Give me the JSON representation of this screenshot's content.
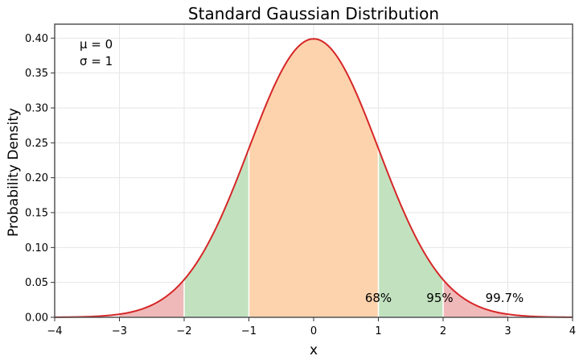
{
  "chart_data": {
    "type": "area",
    "title": "Standard Gaussian Distribution",
    "xlabel": "x",
    "ylabel": "Probability Density",
    "xlim": [
      -4,
      4
    ],
    "ylim": [
      0,
      0.42
    ],
    "grid": true,
    "x_ticks": [
      -4,
      -3,
      -2,
      -1,
      0,
      1,
      2,
      3,
      4
    ],
    "x_tick_labels": [
      "−4",
      "−3",
      "−2",
      "−1",
      "0",
      "1",
      "2",
      "3",
      "4"
    ],
    "y_ticks": [
      0.0,
      0.05,
      0.1,
      0.15,
      0.2,
      0.25,
      0.3,
      0.35,
      0.4
    ],
    "y_tick_labels": [
      "0.00",
      "0.05",
      "0.10",
      "0.15",
      "0.20",
      "0.25",
      "0.30",
      "0.35",
      "0.40"
    ],
    "parameters": {
      "mu_label": "μ = 0",
      "sigma_label": "σ = 1"
    },
    "distribution": {
      "mean": 0,
      "std": 1
    },
    "curve_color": "#d62728",
    "regions": [
      {
        "from": -1,
        "to": 1,
        "color": "#fdd3ad"
      },
      {
        "from": -2,
        "to": -1,
        "color": "#c2e2bf"
      },
      {
        "from": 1,
        "to": 2,
        "color": "#c2e2bf"
      },
      {
        "from": -3,
        "to": -2,
        "color": "#f0b9b9"
      },
      {
        "from": 2,
        "to": 3,
        "color": "#f0b9b9"
      }
    ],
    "annotations": [
      {
        "text": "68%",
        "x": 1.0,
        "y": 0.022
      },
      {
        "text": "95%",
        "x": 1.95,
        "y": 0.022
      },
      {
        "text": "99.7%",
        "x": 2.95,
        "y": 0.022
      }
    ]
  }
}
